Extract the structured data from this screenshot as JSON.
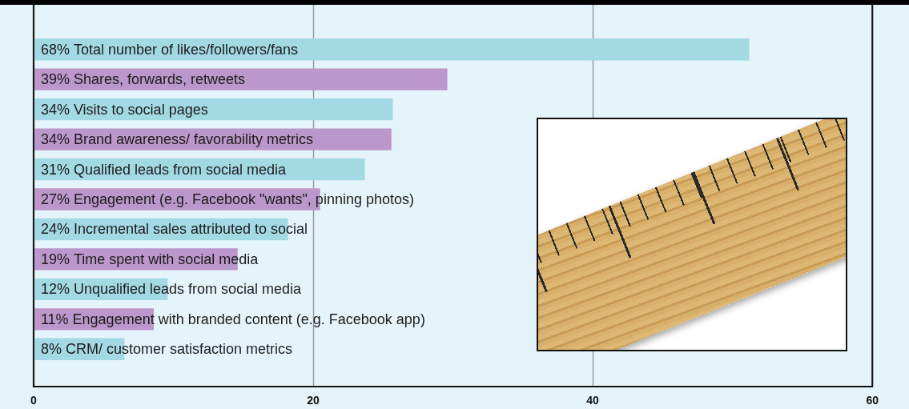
{
  "chart_data": {
    "type": "bar",
    "orientation": "horizontal",
    "categories": [
      "68% Total number of likes/followers/fans",
      "39% Shares, forwards, retweets",
      "34% Visits to social pages",
      "34% Brand awareness/ favorability metrics",
      "31% Qualified leads from social media",
      "27% Engagement (e.g. Facebook \"wants\", pinning photos)",
      "24% Incremental sales attributed to social",
      "19% Time spent with social media",
      "12% Unqualified leads from social media",
      "11% Engagement with branded content (e.g. Facebook app)",
      "8% CRM/ customer satisfaction metrics"
    ],
    "values": [
      51.2,
      29.6,
      25.7,
      25.6,
      23.7,
      20.5,
      18.2,
      14.6,
      9.6,
      8.6,
      6.5
    ],
    "colors": [
      "#a2d9e3",
      "#bb97cb",
      "#a2d9e3",
      "#bb97cb",
      "#a2d9e3",
      "#bb97cb",
      "#a2d9e3",
      "#bb97cb",
      "#a2d9e3",
      "#bb97cb",
      "#a2d9e3"
    ],
    "xlim": [
      0,
      60
    ],
    "xticks": [
      0,
      20,
      40,
      60
    ],
    "grid": true,
    "tick_labels": "x"
  }
}
